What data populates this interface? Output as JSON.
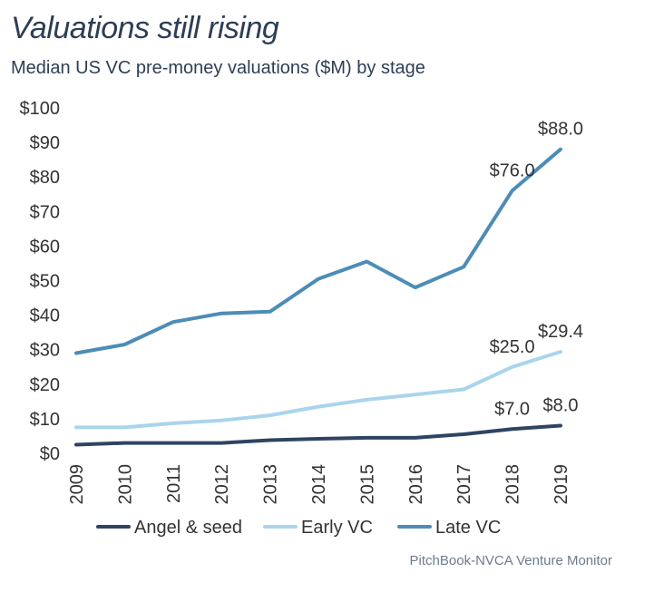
{
  "header": {
    "title": "Valuations still rising",
    "subtitle": "Median US VC pre-money valuations ($M) by stage"
  },
  "source": "PitchBook-NVCA Venture Monitor",
  "chart_data": {
    "type": "line",
    "title": "Valuations still rising",
    "subtitle": "Median US VC pre-money valuations ($M) by stage",
    "x": [
      "2009",
      "2010",
      "2011",
      "2012",
      "2013",
      "2014",
      "2015",
      "2016",
      "2017",
      "2018",
      "2019"
    ],
    "ylim": [
      0,
      100
    ],
    "yticks": [
      0,
      10,
      20,
      30,
      40,
      50,
      60,
      70,
      80,
      90,
      100
    ],
    "ytick_labels": [
      "$0",
      "$10",
      "$20",
      "$30",
      "$40",
      "$50",
      "$60",
      "$70",
      "$80",
      "$90",
      "$100"
    ],
    "grid": false,
    "legend": "bottom",
    "series": [
      {
        "name": "Angel & seed",
        "color": "#2e4462",
        "values": [
          2.5,
          3.0,
          3.0,
          3.0,
          3.8,
          4.2,
          4.5,
          4.5,
          5.5,
          7.0,
          8.0
        ]
      },
      {
        "name": "Early VC",
        "color": "#a9d5ec",
        "values": [
          7.5,
          7.5,
          8.7,
          9.5,
          11.0,
          13.5,
          15.5,
          17.0,
          18.5,
          25.0,
          29.4
        ]
      },
      {
        "name": "Late VC",
        "color": "#4c8db6",
        "values": [
          29.0,
          31.5,
          38.0,
          40.5,
          41.0,
          50.5,
          55.5,
          48.0,
          54.0,
          76.0,
          88.0
        ]
      }
    ],
    "annotations": [
      {
        "series": 2,
        "x": "2018",
        "text": "$76.0"
      },
      {
        "series": 2,
        "x": "2019",
        "text": "$88.0"
      },
      {
        "series": 1,
        "x": "2018",
        "text": "$25.0"
      },
      {
        "series": 1,
        "x": "2019",
        "text": "$29.4"
      },
      {
        "series": 0,
        "x": "2018",
        "text": "$7.0"
      },
      {
        "series": 0,
        "x": "2019",
        "text": "$8.0"
      }
    ]
  }
}
